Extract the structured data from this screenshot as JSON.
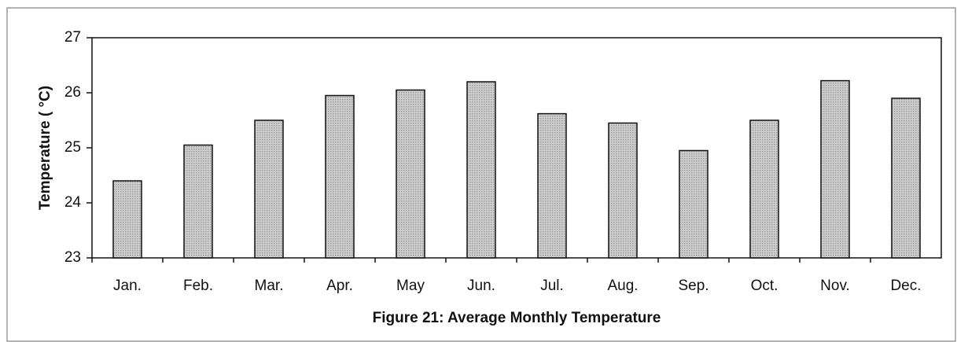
{
  "chart_data": {
    "type": "bar",
    "title": "Figure 21: Average Monthly Temperature",
    "y_label": "Temperature ( °C)",
    "categories": [
      "Jan.",
      "Feb.",
      "Mar.",
      "Apr.",
      "May",
      "Jun.",
      "Jul.",
      "Aug.",
      "Sep.",
      "Oct.",
      "Nov.",
      "Dec."
    ],
    "values": [
      24.4,
      25.05,
      25.5,
      25.95,
      26.05,
      26.2,
      25.62,
      25.45,
      24.95,
      25.5,
      26.22,
      25.9
    ],
    "color": "#bdbdbd",
    "ylim": [
      23,
      27
    ],
    "yticks": [
      23,
      24,
      25,
      26,
      27
    ],
    "grid": false
  }
}
